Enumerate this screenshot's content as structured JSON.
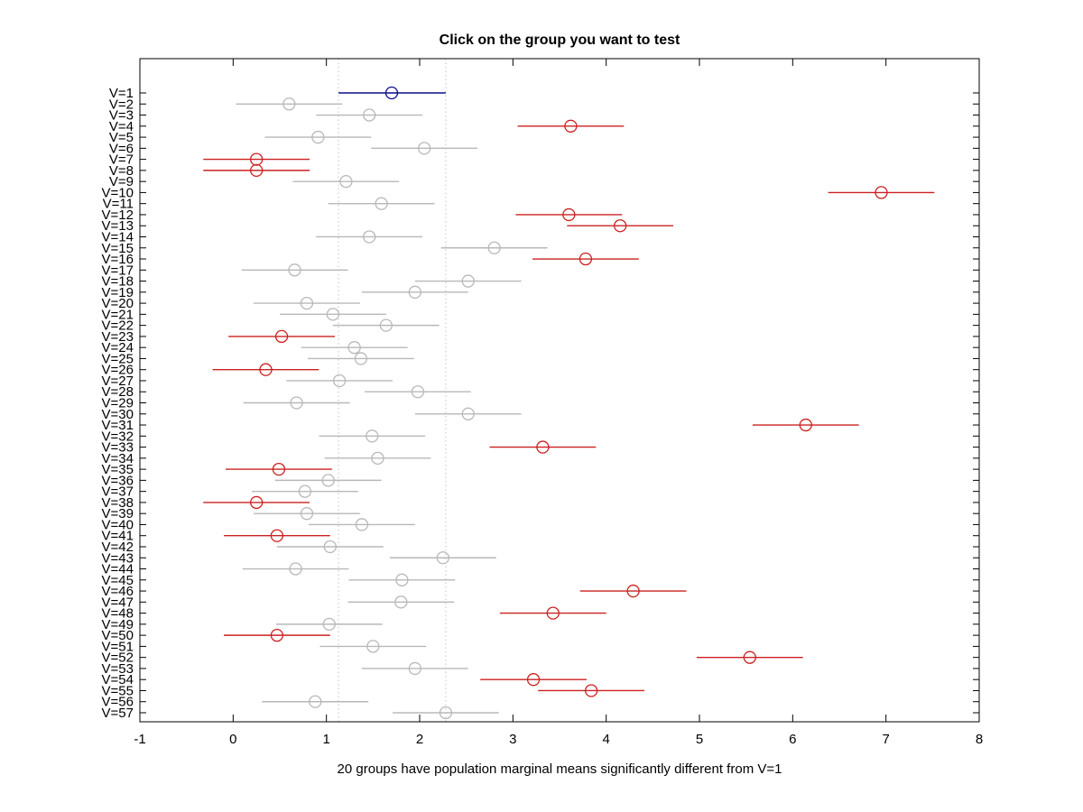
{
  "figure": {
    "title": "Click on the group you want to test",
    "xlabel": "20 groups have population marginal means significantly different from V=1",
    "significant_count": 20,
    "selected_group": "V=1"
  },
  "chart_data": {
    "type": "scatter",
    "subtype": "multcompare-interval-plot",
    "orientation": "horizontal",
    "title": "Click on the group you want to test",
    "xlabel": "20 groups have population marginal means significantly different from V=1",
    "ylabel": "",
    "xlim": [
      -1,
      8
    ],
    "xticks": [
      -1,
      0,
      1,
      2,
      3,
      4,
      5,
      6,
      7,
      8
    ],
    "grid": false,
    "legend": "none",
    "reference_lines_x": [
      1.13,
      2.28
    ],
    "colors": {
      "selected": "#0d0d8f",
      "different": "#cc2020",
      "same": "#b8b8b8",
      "reference": "#cccccc",
      "axis": "#000000"
    },
    "groups": [
      {
        "label": "V=1",
        "center": 1.7,
        "lo": 1.13,
        "hi": 2.28,
        "status": "selected"
      },
      {
        "label": "V=2",
        "center": 0.6,
        "lo": 0.03,
        "hi": 1.17,
        "status": "same"
      },
      {
        "label": "V=3",
        "center": 1.46,
        "lo": 0.89,
        "hi": 2.03,
        "status": "same"
      },
      {
        "label": "V=4",
        "center": 3.62,
        "lo": 3.05,
        "hi": 4.19,
        "status": "different"
      },
      {
        "label": "V=5",
        "center": 0.91,
        "lo": 0.34,
        "hi": 1.48,
        "status": "same"
      },
      {
        "label": "V=6",
        "center": 2.05,
        "lo": 1.48,
        "hi": 2.62,
        "status": "same"
      },
      {
        "label": "V=7",
        "center": 0.25,
        "lo": -0.32,
        "hi": 0.82,
        "status": "different"
      },
      {
        "label": "V=8",
        "center": 0.25,
        "lo": -0.32,
        "hi": 0.82,
        "status": "different"
      },
      {
        "label": "V=9",
        "center": 1.21,
        "lo": 0.64,
        "hi": 1.78,
        "status": "same"
      },
      {
        "label": "V=10",
        "center": 6.95,
        "lo": 6.38,
        "hi": 7.52,
        "status": "different"
      },
      {
        "label": "V=11",
        "center": 1.59,
        "lo": 1.02,
        "hi": 2.16,
        "status": "same"
      },
      {
        "label": "V=12",
        "center": 3.6,
        "lo": 3.03,
        "hi": 4.17,
        "status": "different"
      },
      {
        "label": "V=13",
        "center": 4.15,
        "lo": 3.58,
        "hi": 4.72,
        "status": "different"
      },
      {
        "label": "V=14",
        "center": 1.46,
        "lo": 0.89,
        "hi": 2.03,
        "status": "same"
      },
      {
        "label": "V=15",
        "center": 2.8,
        "lo": 2.23,
        "hi": 3.37,
        "status": "same"
      },
      {
        "label": "V=16",
        "center": 3.78,
        "lo": 3.21,
        "hi": 4.35,
        "status": "different"
      },
      {
        "label": "V=17",
        "center": 0.66,
        "lo": 0.09,
        "hi": 1.23,
        "status": "same"
      },
      {
        "label": "V=18",
        "center": 2.52,
        "lo": 1.95,
        "hi": 3.09,
        "status": "same"
      },
      {
        "label": "V=19",
        "center": 1.95,
        "lo": 1.38,
        "hi": 2.52,
        "status": "same"
      },
      {
        "label": "V=20",
        "center": 0.79,
        "lo": 0.22,
        "hi": 1.36,
        "status": "same"
      },
      {
        "label": "V=21",
        "center": 1.07,
        "lo": 0.5,
        "hi": 1.64,
        "status": "same"
      },
      {
        "label": "V=22",
        "center": 1.64,
        "lo": 1.07,
        "hi": 2.21,
        "status": "same"
      },
      {
        "label": "V=23",
        "center": 0.52,
        "lo": -0.05,
        "hi": 1.09,
        "status": "different"
      },
      {
        "label": "V=24",
        "center": 1.3,
        "lo": 0.73,
        "hi": 1.87,
        "status": "same"
      },
      {
        "label": "V=25",
        "center": 1.37,
        "lo": 0.8,
        "hi": 1.94,
        "status": "same"
      },
      {
        "label": "V=26",
        "center": 0.35,
        "lo": -0.22,
        "hi": 0.92,
        "status": "different"
      },
      {
        "label": "V=27",
        "center": 1.14,
        "lo": 0.57,
        "hi": 1.71,
        "status": "same"
      },
      {
        "label": "V=28",
        "center": 1.98,
        "lo": 1.41,
        "hi": 2.55,
        "status": "same"
      },
      {
        "label": "V=29",
        "center": 0.68,
        "lo": 0.11,
        "hi": 1.25,
        "status": "same"
      },
      {
        "label": "V=30",
        "center": 2.52,
        "lo": 1.95,
        "hi": 3.09,
        "status": "same"
      },
      {
        "label": "V=31",
        "center": 6.14,
        "lo": 5.57,
        "hi": 6.71,
        "status": "different"
      },
      {
        "label": "V=32",
        "center": 1.49,
        "lo": 0.92,
        "hi": 2.06,
        "status": "same"
      },
      {
        "label": "V=33",
        "center": 3.32,
        "lo": 2.75,
        "hi": 3.89,
        "status": "different"
      },
      {
        "label": "V=34",
        "center": 1.55,
        "lo": 0.98,
        "hi": 2.12,
        "status": "same"
      },
      {
        "label": "V=35",
        "center": 0.49,
        "lo": -0.08,
        "hi": 1.06,
        "status": "different"
      },
      {
        "label": "V=36",
        "center": 1.02,
        "lo": 0.45,
        "hi": 1.59,
        "status": "same"
      },
      {
        "label": "V=37",
        "center": 0.77,
        "lo": 0.2,
        "hi": 1.34,
        "status": "same"
      },
      {
        "label": "V=38",
        "center": 0.25,
        "lo": -0.32,
        "hi": 0.82,
        "status": "different"
      },
      {
        "label": "V=39",
        "center": 0.79,
        "lo": 0.22,
        "hi": 1.36,
        "status": "same"
      },
      {
        "label": "V=40",
        "center": 1.38,
        "lo": 0.81,
        "hi": 1.95,
        "status": "same"
      },
      {
        "label": "V=41",
        "center": 0.47,
        "lo": -0.1,
        "hi": 1.04,
        "status": "different"
      },
      {
        "label": "V=42",
        "center": 1.04,
        "lo": 0.47,
        "hi": 1.61,
        "status": "same"
      },
      {
        "label": "V=43",
        "center": 2.25,
        "lo": 1.68,
        "hi": 2.82,
        "status": "same"
      },
      {
        "label": "V=44",
        "center": 0.67,
        "lo": 0.1,
        "hi": 1.24,
        "status": "same"
      },
      {
        "label": "V=45",
        "center": 1.81,
        "lo": 1.24,
        "hi": 2.38,
        "status": "same"
      },
      {
        "label": "V=46",
        "center": 4.29,
        "lo": 3.72,
        "hi": 4.86,
        "status": "different"
      },
      {
        "label": "V=47",
        "center": 1.8,
        "lo": 1.23,
        "hi": 2.37,
        "status": "same"
      },
      {
        "label": "V=48",
        "center": 3.43,
        "lo": 2.86,
        "hi": 4.0,
        "status": "different"
      },
      {
        "label": "V=49",
        "center": 1.03,
        "lo": 0.46,
        "hi": 1.6,
        "status": "same"
      },
      {
        "label": "V=50",
        "center": 0.47,
        "lo": -0.1,
        "hi": 1.04,
        "status": "different"
      },
      {
        "label": "V=51",
        "center": 1.5,
        "lo": 0.93,
        "hi": 2.07,
        "status": "same"
      },
      {
        "label": "V=52",
        "center": 5.54,
        "lo": 4.97,
        "hi": 6.11,
        "status": "different"
      },
      {
        "label": "V=53",
        "center": 1.95,
        "lo": 1.38,
        "hi": 2.52,
        "status": "same"
      },
      {
        "label": "V=54",
        "center": 3.22,
        "lo": 2.65,
        "hi": 3.79,
        "status": "different"
      },
      {
        "label": "V=55",
        "center": 3.84,
        "lo": 3.27,
        "hi": 4.41,
        "status": "different"
      },
      {
        "label": "V=56",
        "center": 0.88,
        "lo": 0.31,
        "hi": 1.45,
        "status": "same"
      },
      {
        "label": "V=57",
        "center": 2.28,
        "lo": 1.71,
        "hi": 2.85,
        "status": "same"
      }
    ]
  }
}
